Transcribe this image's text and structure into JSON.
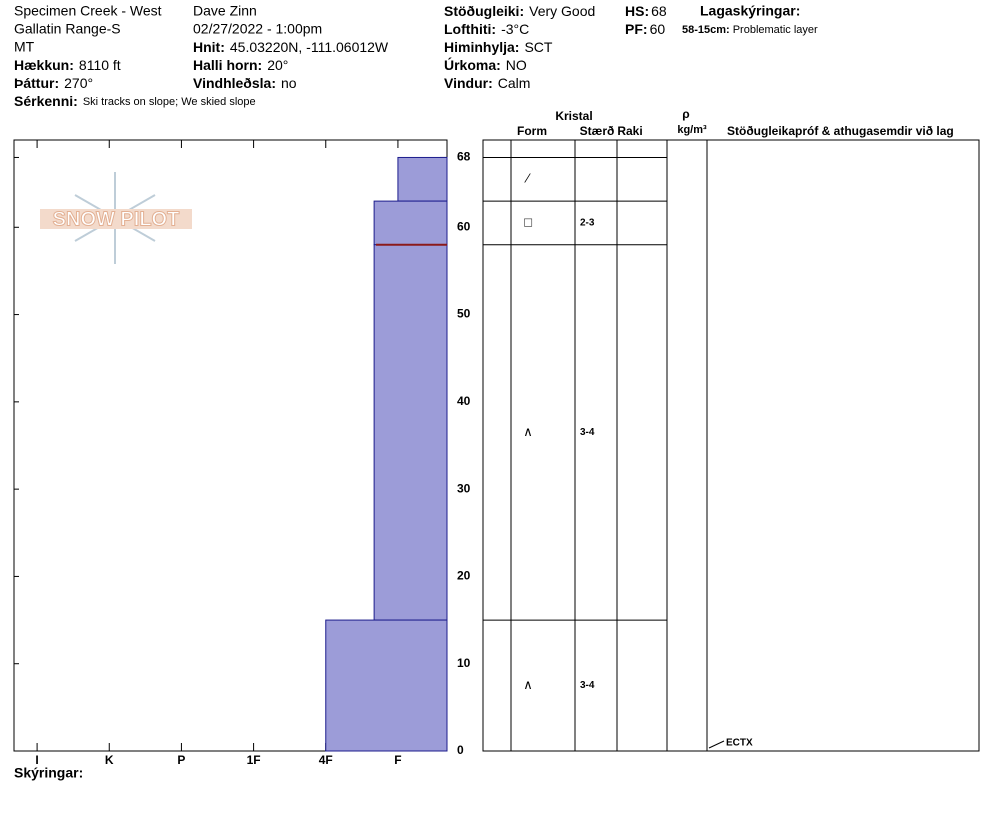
{
  "header": {
    "location": [
      "Specimen Creek - West",
      "Gallatin Range-S",
      "MT"
    ],
    "observer": "Dave Zinn",
    "datetime": "02/27/2022 - 1:00pm",
    "elevation": {
      "label": "Hækkun:",
      "value": "8110 ft"
    },
    "aspect": {
      "label": "Þáttur:",
      "value": "270°"
    },
    "features": {
      "label": "Sérkenni:",
      "value": "Ski tracks on slope; We skied slope"
    },
    "coords": {
      "label": "Hnit:",
      "value": "45.03220N, -111.06012W"
    },
    "slope": {
      "label": "Halli horn:",
      "value": "20°"
    },
    "wind_loading": {
      "label": "Vindhleðsla:",
      "value": "no"
    },
    "stability": {
      "label": "Stöðugleiki:",
      "value": "Very Good"
    },
    "air_temp": {
      "label": "Lofthiti:",
      "value": "-3°C"
    },
    "sky": {
      "label": "Himinhylja:",
      "value": "SCT"
    },
    "precip": {
      "label": "Úrkoma:",
      "value": "NO"
    },
    "wind": {
      "label": "Vindur:",
      "value": "Calm"
    },
    "hs": {
      "label": "HS:",
      "value": 68
    },
    "pf": {
      "label": "PF:",
      "value": 60
    },
    "legend_title": "Lagaskýringar:",
    "legend_entry": {
      "label": "58-15cm:",
      "value": "Problematic layer"
    }
  },
  "logo": "SNOW PILOT",
  "chart_data": {
    "type": "snow-profile",
    "ylim": [
      0,
      70
    ],
    "yticks": [
      0,
      10,
      20,
      30,
      40,
      50,
      60,
      68
    ],
    "xlim": [
      -0.32,
      5.68
    ],
    "xticks": [
      {
        "value": 0,
        "label": "I"
      },
      {
        "value": 1,
        "label": "K"
      },
      {
        "value": 2,
        "label": "P"
      },
      {
        "value": 3,
        "label": "1F"
      },
      {
        "value": 4,
        "label": "4F"
      },
      {
        "value": 5,
        "label": "F"
      }
    ],
    "color": "#9c9cd8",
    "edge_color": "#1c1c8c",
    "problem_color": "#8b1a1a",
    "problematic_depth": 58,
    "layers": [
      {
        "top": 68,
        "bottom": 63,
        "hardness": 5,
        "form": "⁄"
      },
      {
        "top": 63,
        "bottom": 58,
        "hardness": 4.67,
        "form": "□",
        "size": "2-3"
      },
      {
        "top": 58,
        "bottom": 15,
        "hardness": 4.67,
        "form": "∧",
        "size": "3-4"
      },
      {
        "top": 15,
        "bottom": 0,
        "hardness": 4,
        "form": "∧",
        "size": "3-4"
      }
    ],
    "tests": [
      {
        "label": "ECTX",
        "depth": 0
      }
    ],
    "table_headers": {
      "crystal": "Kristal",
      "form": "Form",
      "size": "Stærð",
      "moisture": "Raki",
      "rho": "ρ",
      "density_unit": "kg/m³",
      "comments": "Stöðugleikapróf & athugasemdir við lag"
    },
    "footer": "Skýringar:"
  }
}
